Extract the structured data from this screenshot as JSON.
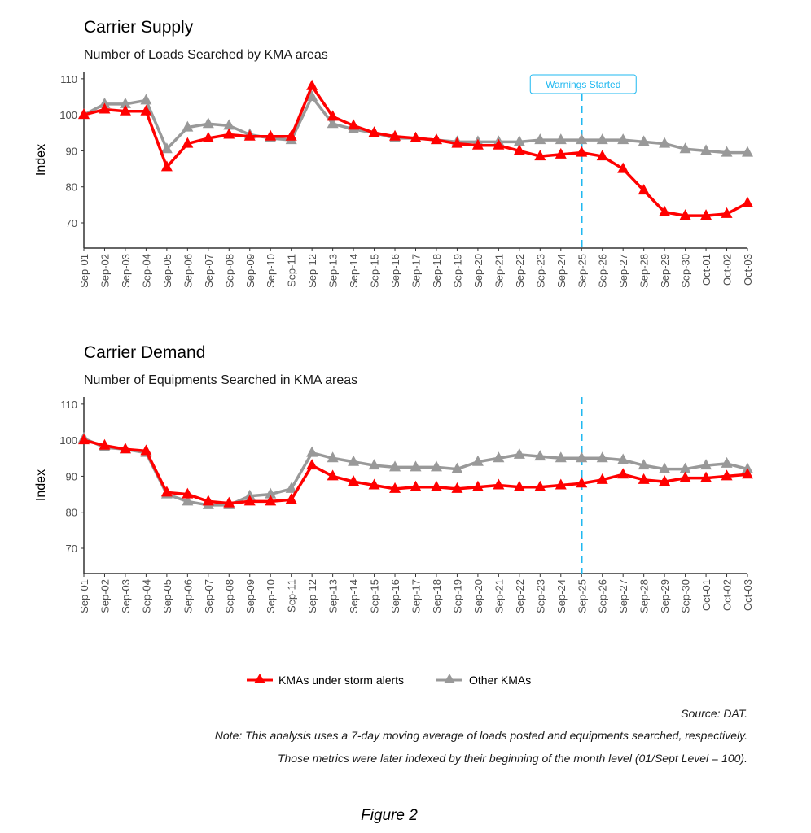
{
  "colors": {
    "storm": "#ff0000",
    "other": "#999999",
    "warning": "#1fb8f0"
  },
  "legend": {
    "storm": "KMAs under storm alerts",
    "other": "Other KMAs",
    "placement": "bottom"
  },
  "source": "Source: DAT.",
  "note_line1": "Note: This analysis uses a 7-day moving average of loads posted and equipments searched, respectively.",
  "note_line2": "Those metrics were later indexed by their beginning of the month level (01/Sept Level = 100).",
  "caption": "Figure 2",
  "chart_data": [
    {
      "type": "line",
      "title": "Carrier Supply",
      "subtitle": "Number of Loads Searched by KMA areas",
      "ylabel": "Index",
      "xlabel": "",
      "ylim": [
        63,
        112
      ],
      "yticks": [
        70,
        80,
        90,
        100,
        110
      ],
      "grid": false,
      "annotation": {
        "x": "Sep-25",
        "label": "Warnings Started"
      },
      "categories": [
        "Sep-01",
        "Sep-02",
        "Sep-03",
        "Sep-04",
        "Sep-05",
        "Sep-06",
        "Sep-07",
        "Sep-08",
        "Sep-09",
        "Sep-10",
        "Sep-11",
        "Sep-12",
        "Sep-13",
        "Sep-14",
        "Sep-15",
        "Sep-16",
        "Sep-17",
        "Sep-18",
        "Sep-19",
        "Sep-20",
        "Sep-21",
        "Sep-22",
        "Sep-23",
        "Sep-24",
        "Sep-25",
        "Sep-26",
        "Sep-27",
        "Sep-28",
        "Sep-29",
        "Sep-30",
        "Oct-01",
        "Oct-02",
        "Oct-03"
      ],
      "series": [
        {
          "name": "KMAs under storm alerts",
          "values": [
            100,
            101.5,
            101,
            101,
            85.5,
            92,
            93.5,
            94.5,
            94,
            94,
            94,
            108,
            99.5,
            97,
            95,
            94,
            93.5,
            93,
            92,
            91.5,
            91.5,
            90,
            88.5,
            89,
            89.5,
            88.5,
            85,
            79,
            73,
            72,
            72,
            72.5,
            75.5
          ]
        },
        {
          "name": "Other KMAs",
          "values": [
            100,
            103,
            103,
            104,
            90.5,
            96.5,
            97.5,
            97,
            94.5,
            93.5,
            93,
            105,
            97.5,
            96,
            95,
            93.5,
            93.5,
            93,
            92.5,
            92.5,
            92.5,
            92.5,
            93,
            93,
            93,
            93,
            93,
            92.5,
            92,
            90.5,
            90,
            89.5,
            89.5
          ]
        }
      ]
    },
    {
      "type": "line",
      "title": "Carrier Demand",
      "subtitle": "Number of Equipments Searched in KMA areas",
      "ylabel": "Index",
      "xlabel": "",
      "ylim": [
        63,
        112
      ],
      "yticks": [
        70,
        80,
        90,
        100,
        110
      ],
      "grid": false,
      "annotation": {
        "x": "Sep-25",
        "label": ""
      },
      "categories": [
        "Sep-01",
        "Sep-02",
        "Sep-03",
        "Sep-04",
        "Sep-05",
        "Sep-06",
        "Sep-07",
        "Sep-08",
        "Sep-09",
        "Sep-10",
        "Sep-11",
        "Sep-12",
        "Sep-13",
        "Sep-14",
        "Sep-15",
        "Sep-16",
        "Sep-17",
        "Sep-18",
        "Sep-19",
        "Sep-20",
        "Sep-21",
        "Sep-22",
        "Sep-23",
        "Sep-24",
        "Sep-25",
        "Sep-26",
        "Sep-27",
        "Sep-28",
        "Sep-29",
        "Sep-30",
        "Oct-01",
        "Oct-02",
        "Oct-03"
      ],
      "series": [
        {
          "name": "KMAs under storm alerts",
          "values": [
            100,
            98.5,
            97.5,
            97,
            85.5,
            85,
            83,
            82.5,
            83,
            83,
            83.5,
            93,
            90,
            88.5,
            87.5,
            86.5,
            87,
            87,
            86.5,
            87,
            87.5,
            87,
            87,
            87.5,
            88,
            89,
            90.5,
            89,
            88.5,
            89.5,
            89.5,
            90,
            90.5
          ]
        },
        {
          "name": "Other KMAs",
          "values": [
            100.5,
            98,
            97.5,
            96.5,
            85,
            83,
            82,
            82,
            84.5,
            85,
            86.5,
            96.5,
            95,
            94,
            93,
            92.5,
            92.5,
            92.5,
            92,
            94,
            95,
            96,
            95.5,
            95,
            95,
            95,
            94.5,
            93,
            92,
            92,
            93,
            93.5,
            92
          ]
        }
      ]
    }
  ]
}
